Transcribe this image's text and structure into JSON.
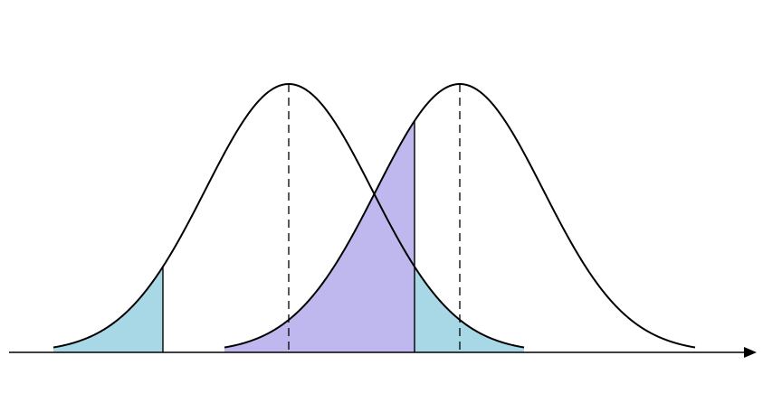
{
  "diagram": {
    "kind": "two overlapping normal distribution curves with shaded tail regions",
    "curves": [
      {
        "name": "left-distribution",
        "mean_marker": "dashed"
      },
      {
        "name": "right-distribution",
        "mean_marker": "dashed"
      }
    ],
    "shaded_regions": [
      {
        "name": "left-curve-lower-tail",
        "color": "#a8d8e6"
      },
      {
        "name": "left-curve-upper-tail",
        "color": "#a8d8e6"
      },
      {
        "name": "right-curve-lower-region",
        "color": "#b7b0ec"
      }
    ],
    "colors": {
      "curve_stroke": "#000000",
      "axis": "#000000",
      "tail_fill": "#a8d8e6",
      "overlap_fill": "#b7b0ec"
    }
  }
}
